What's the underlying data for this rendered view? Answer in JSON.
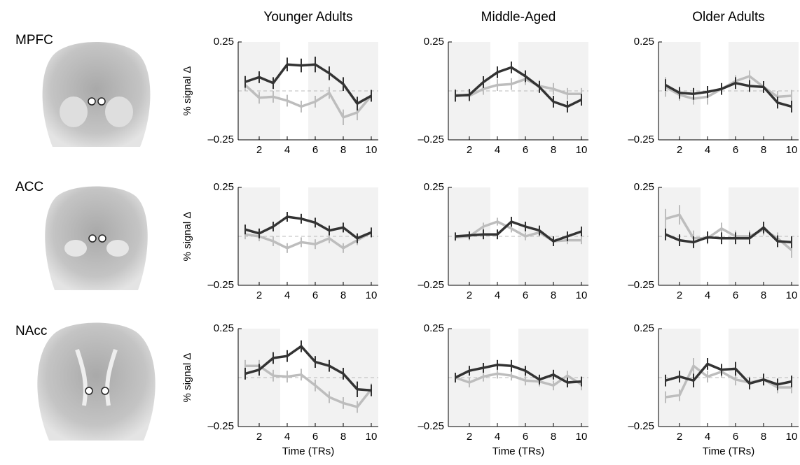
{
  "column_titles": [
    "Younger Adults",
    "Middle-Aged",
    "Older Adults"
  ],
  "row_labels": [
    "MPFC",
    "ACC",
    "NAcc"
  ],
  "chart_data": [
    {
      "type": "line",
      "ylabel": "% signal Δ",
      "x": [
        1,
        2,
        3,
        4,
        5,
        6,
        7,
        8,
        9,
        10
      ],
      "xlim": [
        0.5,
        10.5
      ],
      "xticks": [
        2,
        4,
        6,
        8,
        10
      ],
      "ylim": [
        -0.25,
        0.25
      ],
      "yticks": [
        {
          "value": -0.25,
          "label": "–0.25"
        },
        0.25
      ],
      "shaded": [
        [
          0.5,
          3.5
        ],
        [
          5.5,
          10.5
        ]
      ],
      "reference_line": 0,
      "series": [
        {
          "color": "#bdbdbd",
          "values": [
            0.03,
            -0.035,
            -0.03,
            -0.05,
            -0.08,
            -0.055,
            -0.01,
            -0.135,
            -0.11,
            -0.025
          ],
          "errors": [
            0.03,
            0.03,
            0.03,
            0.03,
            0.03,
            0.03,
            0.03,
            0.04,
            0.04,
            0.03
          ]
        },
        {
          "color": "#333333",
          "values": [
            0.046,
            0.07,
            0.04,
            0.135,
            0.13,
            0.135,
            0.09,
            0.035,
            -0.065,
            -0.025
          ],
          "errors": [
            0.03,
            0.03,
            0.03,
            0.035,
            0.035,
            0.04,
            0.035,
            0.035,
            0.035,
            0.03
          ]
        }
      ]
    },
    {
      "type": "line",
      "x": [
        1,
        2,
        3,
        4,
        5,
        6,
        7,
        8,
        9,
        10
      ],
      "xlim": [
        0.5,
        10.5
      ],
      "xticks": [
        2,
        4,
        6,
        8,
        10
      ],
      "ylim": [
        -0.25,
        0.25
      ],
      "yticks": [
        {
          "value": -0.25,
          "label": "–0.25"
        },
        0.25
      ],
      "shaded": [
        [
          0.5,
          3.5
        ],
        [
          5.5,
          10.5
        ]
      ],
      "reference_line": 0,
      "series": [
        {
          "color": "#bdbdbd",
          "values": [
            -0.02,
            -0.025,
            0.01,
            0.03,
            0.035,
            0.06,
            0.025,
            0.01,
            -0.015,
            -0.015
          ],
          "errors": [
            0.03,
            0.03,
            0.03,
            0.03,
            0.03,
            0.03,
            0.03,
            0.03,
            0.03,
            0.03
          ]
        },
        {
          "color": "#333333",
          "values": [
            -0.025,
            -0.02,
            0.045,
            0.095,
            0.12,
            0.075,
            0.02,
            -0.055,
            -0.08,
            -0.045
          ],
          "errors": [
            0.03,
            0.03,
            0.03,
            0.03,
            0.03,
            0.03,
            0.03,
            0.03,
            0.03,
            0.03
          ]
        }
      ]
    },
    {
      "type": "line",
      "x": [
        1,
        2,
        3,
        4,
        5,
        6,
        7,
        8,
        9,
        10
      ],
      "xlim": [
        0.5,
        10.5
      ],
      "xticks": [
        2,
        4,
        6,
        8,
        10
      ],
      "ylim": [
        -0.25,
        0.25
      ],
      "yticks": [
        {
          "value": -0.25,
          "label": "–0.25"
        },
        0.25
      ],
      "shaded": [
        [
          0.5,
          3.5
        ],
        [
          5.5,
          10.5
        ]
      ],
      "reference_line": 0,
      "series": [
        {
          "color": "#bdbdbd",
          "values": [
            0.02,
            -0.02,
            -0.04,
            -0.03,
            0.01,
            0.05,
            0.075,
            0.02,
            -0.03,
            -0.025
          ],
          "errors": [
            0.05,
            0.03,
            0.03,
            0.04,
            0.03,
            0.03,
            0.03,
            0.03,
            0.03,
            0.03
          ]
        },
        {
          "color": "#333333",
          "values": [
            0.03,
            -0.01,
            -0.015,
            -0.005,
            0.01,
            0.04,
            0.025,
            0.02,
            -0.06,
            -0.08
          ],
          "errors": [
            0.03,
            0.03,
            0.03,
            0.03,
            0.03,
            0.03,
            0.03,
            0.03,
            0.03,
            0.03
          ]
        }
      ]
    },
    {
      "type": "line",
      "ylabel": "% signal Δ",
      "x": [
        1,
        2,
        3,
        4,
        5,
        6,
        7,
        8,
        9,
        10
      ],
      "xlim": [
        0.5,
        10.5
      ],
      "xticks": [
        2,
        4,
        6,
        8,
        10
      ],
      "ylim": [
        -0.25,
        0.25
      ],
      "yticks": [
        {
          "value": -0.25,
          "label": "–0.25"
        },
        0.25
      ],
      "shaded": [
        [
          0.5,
          3.5
        ],
        [
          5.5,
          10.5
        ]
      ],
      "reference_line": 0,
      "series": [
        {
          "color": "#bdbdbd",
          "values": [
            0.01,
            0.0,
            -0.025,
            -0.06,
            -0.03,
            -0.04,
            -0.01,
            -0.06,
            -0.02,
            0.02
          ],
          "errors": [
            0.025,
            0.025,
            0.025,
            0.025,
            0.025,
            0.025,
            0.025,
            0.025,
            0.025,
            0.025
          ]
        },
        {
          "color": "#333333",
          "values": [
            0.035,
            0.015,
            0.05,
            0.1,
            0.09,
            0.07,
            0.03,
            0.045,
            -0.01,
            0.02
          ],
          "errors": [
            0.025,
            0.025,
            0.025,
            0.025,
            0.025,
            0.025,
            0.025,
            0.025,
            0.025,
            0.025
          ]
        }
      ]
    },
    {
      "type": "line",
      "x": [
        1,
        2,
        3,
        4,
        5,
        6,
        7,
        8,
        9,
        10
      ],
      "xlim": [
        0.5,
        10.5
      ],
      "xticks": [
        2,
        4,
        6,
        8,
        10
      ],
      "ylim": [
        -0.25,
        0.25
      ],
      "yticks": [
        {
          "value": -0.25,
          "label": "–0.25"
        },
        0.25
      ],
      "shaded": [
        [
          0.5,
          3.5
        ],
        [
          5.5,
          10.5
        ]
      ],
      "reference_line": 0,
      "series": [
        {
          "color": "#bdbdbd",
          "values": [
            -0.005,
            0.0,
            0.05,
            0.075,
            0.04,
            0.0,
            0.02,
            -0.025,
            -0.02,
            -0.02
          ],
          "errors": [
            0.02,
            0.02,
            0.02,
            0.02,
            0.02,
            0.02,
            0.02,
            0.02,
            0.02,
            0.02
          ]
        },
        {
          "color": "#333333",
          "values": [
            0.0,
            0.005,
            0.01,
            0.01,
            0.075,
            0.05,
            0.03,
            -0.025,
            0.0,
            0.025
          ],
          "errors": [
            0.02,
            0.02,
            0.025,
            0.025,
            0.025,
            0.025,
            0.025,
            0.025,
            0.025,
            0.025
          ]
        }
      ]
    },
    {
      "type": "line",
      "x": [
        1,
        2,
        3,
        4,
        5,
        6,
        7,
        8,
        9,
        10
      ],
      "xlim": [
        0.5,
        10.5
      ],
      "xticks": [
        2,
        4,
        6,
        8,
        10
      ],
      "ylim": [
        -0.25,
        0.25
      ],
      "yticks": [
        {
          "value": -0.25,
          "label": "–0.25"
        },
        0.25
      ],
      "shaded": [
        [
          0.5,
          3.5
        ],
        [
          5.5,
          10.5
        ]
      ],
      "reference_line": 0,
      "series": [
        {
          "color": "#bdbdbd",
          "values": [
            0.09,
            0.11,
            -0.01,
            -0.01,
            0.04,
            0.0,
            0.0,
            0.035,
            -0.01,
            -0.07
          ],
          "errors": [
            0.05,
            0.05,
            0.04,
            0.03,
            0.03,
            0.03,
            0.03,
            0.03,
            0.03,
            0.04
          ]
        },
        {
          "color": "#333333",
          "values": [
            0.01,
            -0.02,
            -0.03,
            -0.005,
            -0.01,
            -0.01,
            -0.01,
            0.045,
            -0.025,
            -0.03
          ],
          "errors": [
            0.03,
            0.03,
            0.03,
            0.03,
            0.03,
            0.03,
            0.03,
            0.03,
            0.03,
            0.03
          ]
        }
      ]
    },
    {
      "type": "line",
      "ylabel": "% signal Δ",
      "xlabel": "Time (TRs)",
      "x": [
        1,
        2,
        3,
        4,
        5,
        6,
        7,
        8,
        9,
        10
      ],
      "xlim": [
        0.5,
        10.5
      ],
      "xticks": [
        2,
        4,
        6,
        8,
        10
      ],
      "ylim": [
        -0.25,
        0.25
      ],
      "yticks": [
        {
          "value": -0.25,
          "label": "–0.25"
        },
        0.25
      ],
      "shaded": [
        [
          0.5,
          3.5
        ],
        [
          5.5,
          10.5
        ]
      ],
      "reference_line": 0,
      "series": [
        {
          "color": "#bdbdbd",
          "values": [
            0.06,
            0.06,
            0.01,
            0.005,
            0.015,
            -0.04,
            -0.1,
            -0.13,
            -0.15,
            -0.06
          ],
          "errors": [
            0.03,
            0.03,
            0.03,
            0.03,
            0.03,
            0.03,
            0.03,
            0.03,
            0.03,
            0.03
          ]
        },
        {
          "color": "#333333",
          "values": [
            0.02,
            0.04,
            0.1,
            0.11,
            0.16,
            0.08,
            0.06,
            0.02,
            -0.06,
            -0.065
          ],
          "errors": [
            0.03,
            0.03,
            0.03,
            0.03,
            0.03,
            0.03,
            0.03,
            0.03,
            0.04,
            0.03
          ]
        }
      ]
    },
    {
      "type": "line",
      "xlabel": "Time (TRs)",
      "x": [
        1,
        2,
        3,
        4,
        5,
        6,
        7,
        8,
        9,
        10
      ],
      "xlim": [
        0.5,
        10.5
      ],
      "xticks": [
        2,
        4,
        6,
        8,
        10
      ],
      "ylim": [
        -0.25,
        0.25
      ],
      "yticks": [
        {
          "value": -0.25,
          "label": "–0.25"
        },
        0.25
      ],
      "shaded": [
        [
          0.5,
          3.5
        ],
        [
          5.5,
          10.5
        ]
      ],
      "reference_line": 0,
      "series": [
        {
          "color": "#bdbdbd",
          "values": [
            0.0,
            -0.025,
            0.005,
            0.02,
            0.01,
            -0.015,
            -0.02,
            -0.04,
            0.01,
            -0.035
          ],
          "errors": [
            0.025,
            0.025,
            0.025,
            0.025,
            0.025,
            0.025,
            0.025,
            0.025,
            0.025,
            0.03
          ]
        },
        {
          "color": "#333333",
          "values": [
            0.0,
            0.035,
            0.05,
            0.065,
            0.06,
            0.035,
            -0.01,
            0.015,
            -0.025,
            -0.02
          ],
          "errors": [
            0.025,
            0.025,
            0.025,
            0.025,
            0.03,
            0.025,
            0.025,
            0.025,
            0.025,
            0.025
          ]
        }
      ]
    },
    {
      "type": "line",
      "xlabel": "Time (TRs)",
      "x": [
        1,
        2,
        3,
        4,
        5,
        6,
        7,
        8,
        9,
        10
      ],
      "xlim": [
        0.5,
        10.5
      ],
      "xticks": [
        2,
        4,
        6,
        8,
        10
      ],
      "ylim": [
        -0.25,
        0.25
      ],
      "yticks": [
        {
          "value": -0.25,
          "label": "–0.25"
        },
        0.25
      ],
      "shaded": [
        [
          0.5,
          3.5
        ],
        [
          5.5,
          10.5
        ]
      ],
      "reference_line": 0,
      "series": [
        {
          "color": "#bdbdbd",
          "values": [
            -0.1,
            -0.09,
            0.06,
            0.005,
            0.03,
            -0.01,
            -0.025,
            -0.01,
            -0.05,
            -0.05
          ],
          "errors": [
            0.03,
            0.03,
            0.04,
            0.03,
            0.03,
            0.03,
            0.03,
            0.03,
            0.03,
            0.03
          ]
        },
        {
          "color": "#333333",
          "values": [
            -0.015,
            0.005,
            -0.015,
            0.07,
            0.04,
            0.045,
            -0.03,
            -0.01,
            -0.035,
            -0.02
          ],
          "errors": [
            0.03,
            0.03,
            0.035,
            0.03,
            0.03,
            0.035,
            0.03,
            0.03,
            0.03,
            0.03
          ]
        }
      ]
    }
  ]
}
